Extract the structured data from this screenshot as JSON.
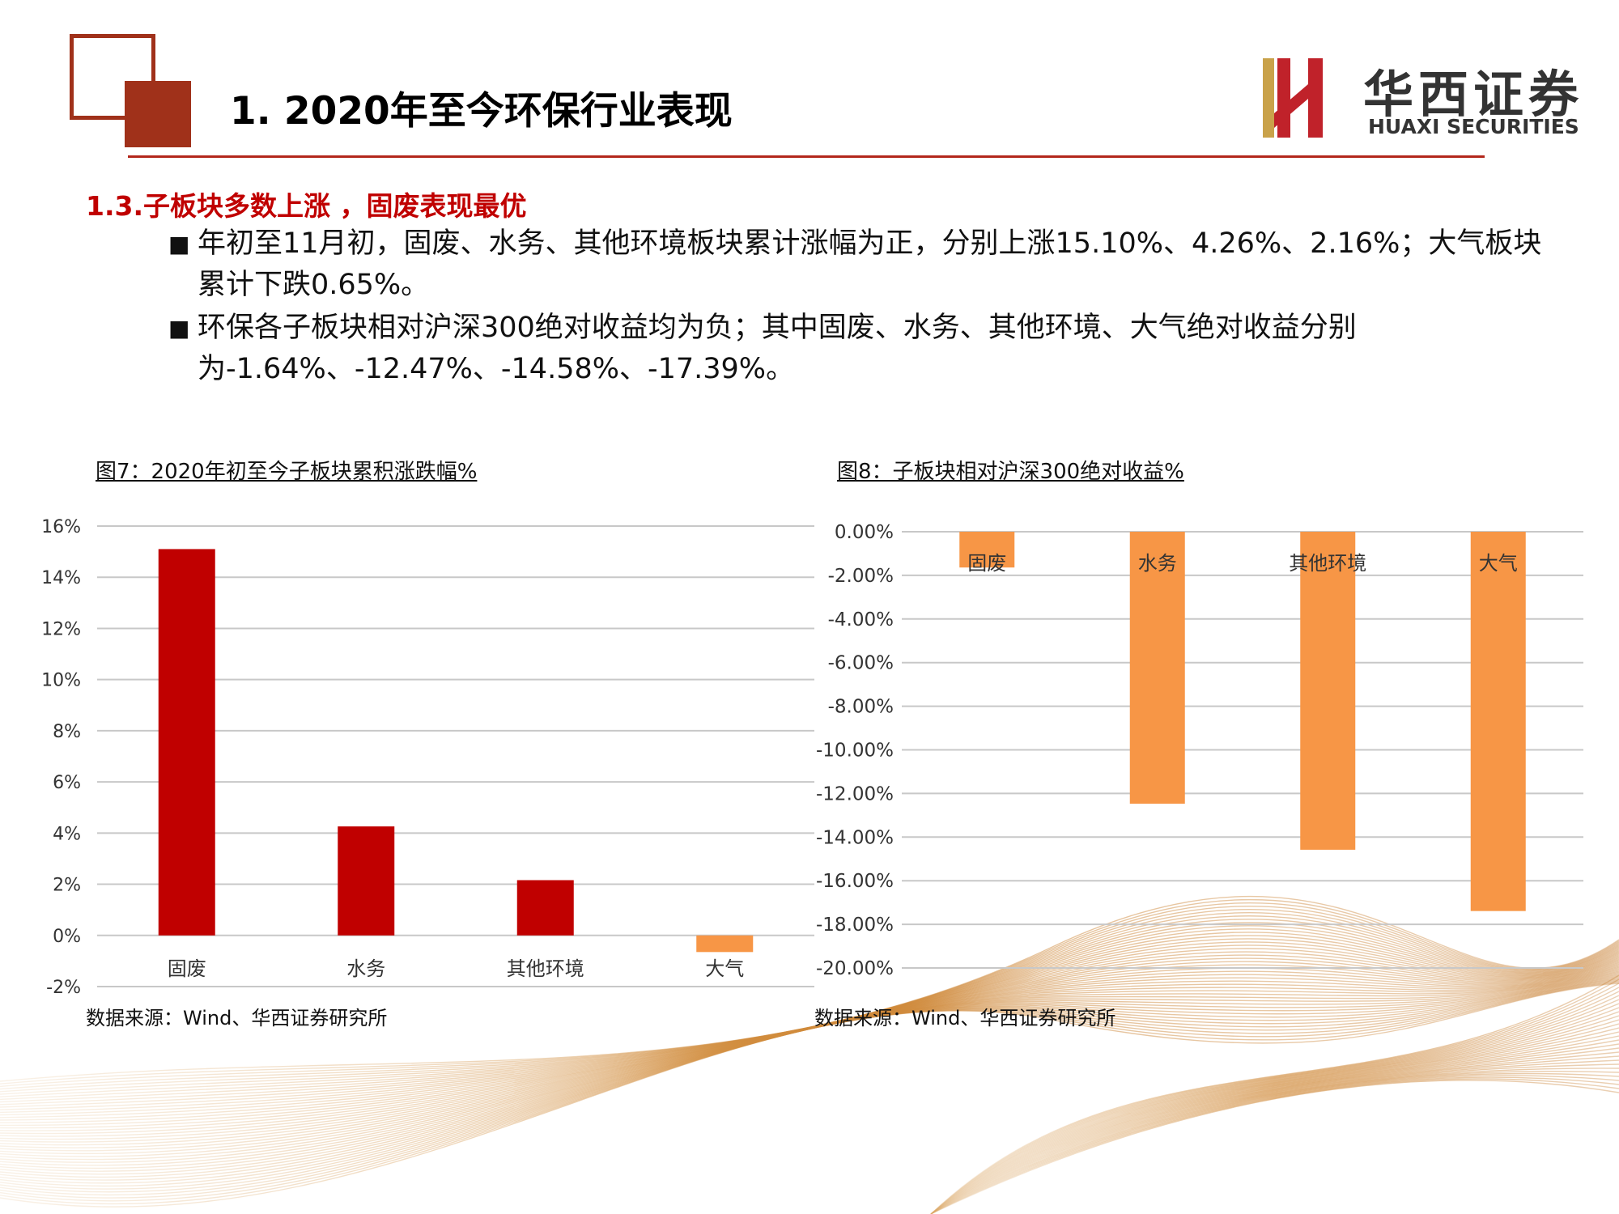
{
  "header": {
    "title": "1. 2020年至今环保行业表现",
    "logo_cn": "华西证券",
    "logo_en": "HUAXI SECURITIES",
    "accent_color": "#a0311a"
  },
  "section": {
    "heading": "1.3.子板块多数上涨 ，固废表现最优",
    "bullets": [
      "年初至11月初，固废、水务、其他环境板块累计涨幅为正，分别上涨15.10%、4.26%、2.16%；大气板块累计下跌0.65%。",
      "环保各子板块相对沪深300绝对收益均为负；其中固废、水务、其他环境、大气绝对收益分别为-1.64%、-12.47%、-14.58%、-17.39%。"
    ]
  },
  "figures": [
    {
      "title": "图7：2020年初至今子板块累积涨跌幅%",
      "source": "数据来源：Wind、华西证券研究所"
    },
    {
      "title": "图8：子板块相对沪深300绝对收益%",
      "source": "数据来源：Wind、华西证券研究所"
    }
  ],
  "chart_data": [
    {
      "type": "bar",
      "categories": [
        "固废",
        "水务",
        "其他环境",
        "大气"
      ],
      "values": [
        15.1,
        4.26,
        2.16,
        -0.65
      ],
      "ylim": [
        -2,
        16
      ],
      "yticks": [
        16,
        14,
        12,
        10,
        8,
        6,
        4,
        2,
        0,
        -2
      ],
      "ytick_labels": [
        "16%",
        "14%",
        "12%",
        "10%",
        "8%",
        "6%",
        "4%",
        "2%",
        "0%",
        "-2%"
      ],
      "colors": {
        "positive": "#c00000",
        "negative": "#f79646"
      },
      "grid": true
    },
    {
      "type": "bar",
      "categories": [
        "固废",
        "水务",
        "其他环境",
        "大气"
      ],
      "values": [
        -1.64,
        -12.47,
        -14.58,
        -17.39
      ],
      "ylim": [
        -20,
        0
      ],
      "yticks": [
        0,
        -2,
        -4,
        -6,
        -8,
        -10,
        -12,
        -14,
        -16,
        -18,
        -20
      ],
      "ytick_labels": [
        "0.00%",
        "-2.00%",
        "-4.00%",
        "-6.00%",
        "-8.00%",
        "-10.00%",
        "-12.00%",
        "-14.00%",
        "-16.00%",
        "-18.00%",
        "-20.00%"
      ],
      "colors": {
        "bar": "#f79646"
      },
      "grid": true
    }
  ]
}
